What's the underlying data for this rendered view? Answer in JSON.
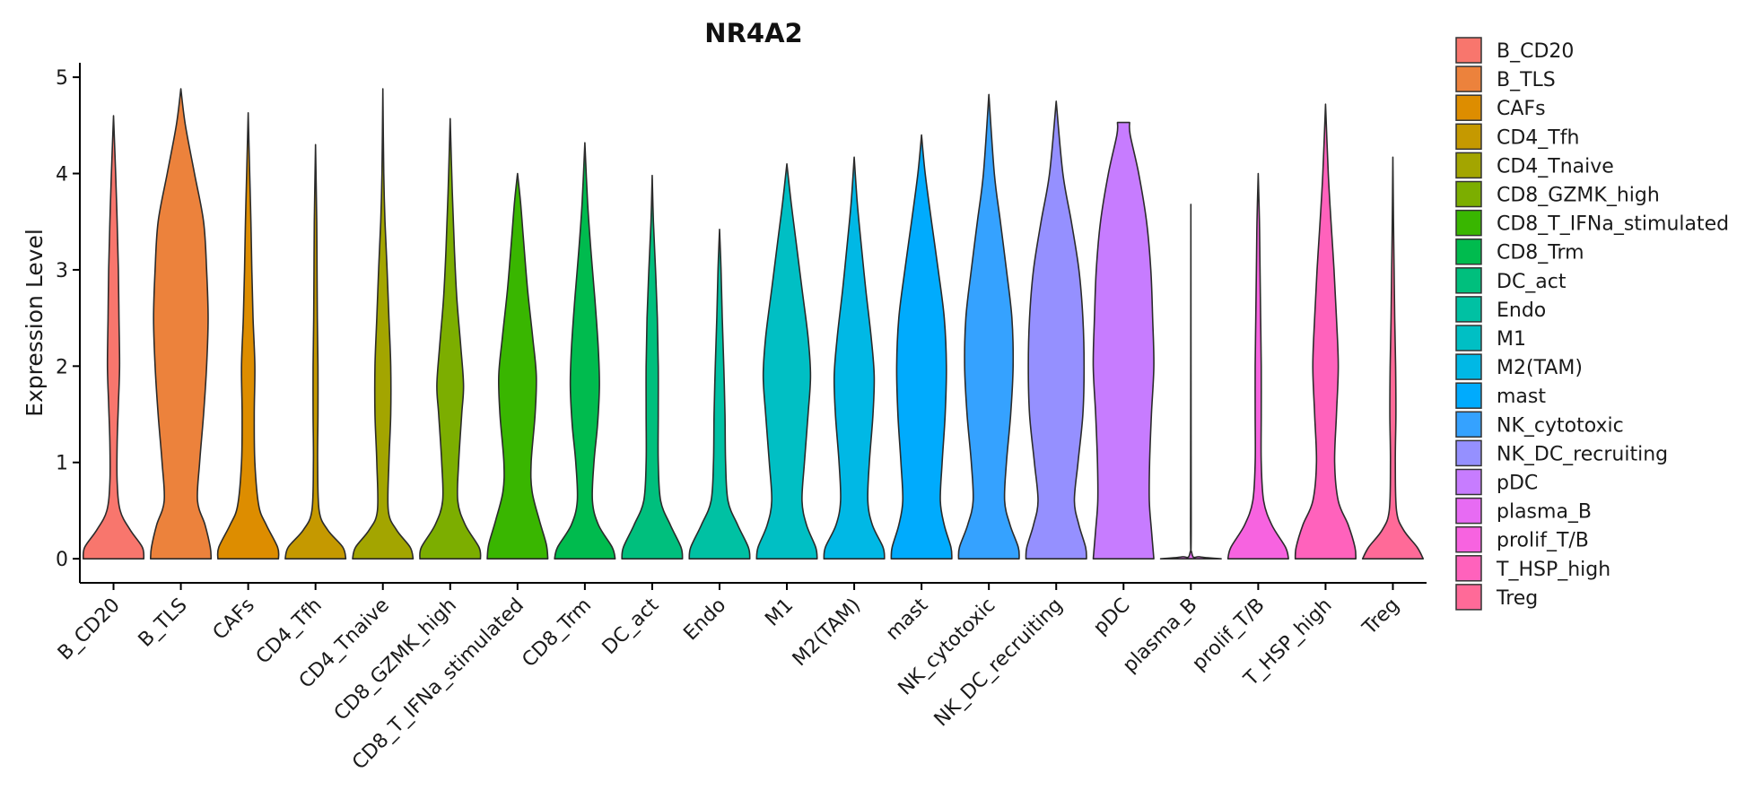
{
  "chart_data": {
    "type": "violin",
    "title": "NR4A2",
    "xlabel": "",
    "ylabel": "Expression Level",
    "ylim": [
      -0.25,
      5.15
    ],
    "yticks": [
      0,
      1,
      2,
      3,
      4,
      5
    ],
    "legend_position": "right",
    "categories": [
      "B_CD20",
      "B_TLS",
      "CAFs",
      "CD4_Tfh",
      "CD4_Tnaive",
      "CD8_GZMK_high",
      "CD8_T_IFNa_stimulated",
      "CD8_Trm",
      "DC_act",
      "Endo",
      "M1",
      "M2(TAM)",
      "mast",
      "NK_cytotoxic",
      "NK_DC_recruiting",
      "pDC",
      "plasma_B",
      "prolif_T/B",
      "T_HSP_high",
      "Treg"
    ],
    "colors": [
      "#F8766D",
      "#EC823C",
      "#DD8D00",
      "#C59900",
      "#A3A500",
      "#7CAE00",
      "#39B600",
      "#00BB4E",
      "#00BF7D",
      "#00C1A3",
      "#00BFC4",
      "#00B8E5",
      "#00ABFD",
      "#35A2FF",
      "#9590FF",
      "#C77CFF",
      "#E76BF3",
      "#F763E0",
      "#FF62BC",
      "#FF6A98"
    ],
    "series": [
      {
        "name": "B_CD20",
        "max": 4.6,
        "profile": [
          [
            0,
            1.0
          ],
          [
            0.12,
            0.95
          ],
          [
            0.3,
            0.55
          ],
          [
            0.5,
            0.22
          ],
          [
            0.8,
            0.12
          ],
          [
            1.2,
            0.12
          ],
          [
            1.6,
            0.16
          ],
          [
            2.0,
            0.2
          ],
          [
            2.5,
            0.18
          ],
          [
            3.0,
            0.16
          ],
          [
            3.5,
            0.12
          ],
          [
            4.0,
            0.07
          ],
          [
            4.6,
            0.0
          ]
        ]
      },
      {
        "name": "B_TLS",
        "max": 4.88,
        "profile": [
          [
            0,
            1.0
          ],
          [
            0.12,
            0.97
          ],
          [
            0.35,
            0.8
          ],
          [
            0.6,
            0.55
          ],
          [
            1.0,
            0.62
          ],
          [
            1.5,
            0.75
          ],
          [
            2.0,
            0.85
          ],
          [
            2.5,
            0.9
          ],
          [
            3.0,
            0.85
          ],
          [
            3.5,
            0.75
          ],
          [
            4.0,
            0.45
          ],
          [
            4.5,
            0.15
          ],
          [
            4.88,
            0.0
          ]
        ]
      },
      {
        "name": "CAFs",
        "max": 4.63,
        "profile": [
          [
            0,
            1.0
          ],
          [
            0.12,
            0.97
          ],
          [
            0.35,
            0.6
          ],
          [
            0.55,
            0.35
          ],
          [
            1.0,
            0.22
          ],
          [
            1.5,
            0.2
          ],
          [
            2.0,
            0.22
          ],
          [
            2.5,
            0.16
          ],
          [
            3.0,
            0.12
          ],
          [
            3.5,
            0.09
          ],
          [
            4.0,
            0.05
          ],
          [
            4.63,
            0.0
          ]
        ]
      },
      {
        "name": "CD4_Tfh",
        "max": 4.3,
        "profile": [
          [
            0,
            1.0
          ],
          [
            0.12,
            0.9
          ],
          [
            0.3,
            0.4
          ],
          [
            0.5,
            0.12
          ],
          [
            1.0,
            0.07
          ],
          [
            1.5,
            0.08
          ],
          [
            2.0,
            0.08
          ],
          [
            2.5,
            0.06
          ],
          [
            3.0,
            0.05
          ],
          [
            3.5,
            0.04
          ],
          [
            4.3,
            0.0
          ]
        ]
      },
      {
        "name": "CD4_Tnaive",
        "max": 4.88,
        "profile": [
          [
            0,
            1.0
          ],
          [
            0.12,
            0.9
          ],
          [
            0.3,
            0.45
          ],
          [
            0.5,
            0.18
          ],
          [
            1.0,
            0.2
          ],
          [
            1.5,
            0.26
          ],
          [
            2.0,
            0.26
          ],
          [
            2.5,
            0.2
          ],
          [
            3.0,
            0.14
          ],
          [
            3.5,
            0.07
          ],
          [
            4.0,
            0.03
          ],
          [
            4.88,
            0.0
          ]
        ]
      },
      {
        "name": "CD8_GZMK_high",
        "max": 4.57,
        "profile": [
          [
            0,
            1.0
          ],
          [
            0.12,
            0.95
          ],
          [
            0.35,
            0.5
          ],
          [
            0.6,
            0.25
          ],
          [
            1.0,
            0.28
          ],
          [
            1.5,
            0.38
          ],
          [
            1.8,
            0.44
          ],
          [
            2.2,
            0.35
          ],
          [
            2.7,
            0.22
          ],
          [
            3.2,
            0.14
          ],
          [
            3.8,
            0.07
          ],
          [
            4.57,
            0.0
          ]
        ]
      },
      {
        "name": "CD8_T_IFNa_stimulated",
        "max": 4.0,
        "profile": [
          [
            0,
            1.0
          ],
          [
            0.15,
            0.95
          ],
          [
            0.4,
            0.72
          ],
          [
            0.7,
            0.48
          ],
          [
            1.0,
            0.45
          ],
          [
            1.5,
            0.58
          ],
          [
            1.9,
            0.62
          ],
          [
            2.3,
            0.5
          ],
          [
            2.8,
            0.33
          ],
          [
            3.3,
            0.2
          ],
          [
            3.7,
            0.1
          ],
          [
            4.0,
            0.0
          ]
        ]
      },
      {
        "name": "CD8_Trm",
        "max": 4.32,
        "profile": [
          [
            0,
            1.0
          ],
          [
            0.12,
            0.9
          ],
          [
            0.35,
            0.45
          ],
          [
            0.6,
            0.25
          ],
          [
            1.0,
            0.3
          ],
          [
            1.4,
            0.42
          ],
          [
            1.8,
            0.48
          ],
          [
            2.2,
            0.44
          ],
          [
            2.7,
            0.33
          ],
          [
            3.2,
            0.2
          ],
          [
            3.7,
            0.09
          ],
          [
            4.32,
            0.0
          ]
        ]
      },
      {
        "name": "DC_act",
        "max": 3.98,
        "profile": [
          [
            0,
            1.0
          ],
          [
            0.12,
            0.95
          ],
          [
            0.35,
            0.6
          ],
          [
            0.6,
            0.28
          ],
          [
            1.0,
            0.2
          ],
          [
            1.5,
            0.2
          ],
          [
            2.0,
            0.2
          ],
          [
            2.5,
            0.17
          ],
          [
            3.0,
            0.11
          ],
          [
            3.5,
            0.04
          ],
          [
            3.98,
            0.0
          ]
        ]
      },
      {
        "name": "Endo",
        "max": 3.42,
        "profile": [
          [
            0,
            1.0
          ],
          [
            0.12,
            0.95
          ],
          [
            0.35,
            0.6
          ],
          [
            0.6,
            0.28
          ],
          [
            1.0,
            0.2
          ],
          [
            1.5,
            0.18
          ],
          [
            2.0,
            0.14
          ],
          [
            2.5,
            0.09
          ],
          [
            3.0,
            0.05
          ],
          [
            3.42,
            0.0
          ]
        ]
      },
      {
        "name": "M1",
        "max": 4.1,
        "profile": [
          [
            0,
            1.0
          ],
          [
            0.12,
            0.95
          ],
          [
            0.35,
            0.65
          ],
          [
            0.6,
            0.5
          ],
          [
            1.0,
            0.58
          ],
          [
            1.5,
            0.7
          ],
          [
            1.9,
            0.78
          ],
          [
            2.3,
            0.7
          ],
          [
            2.8,
            0.5
          ],
          [
            3.3,
            0.3
          ],
          [
            3.7,
            0.14
          ],
          [
            4.1,
            0.0
          ]
        ]
      },
      {
        "name": "M2(TAM)",
        "max": 4.17,
        "profile": [
          [
            0,
            1.0
          ],
          [
            0.12,
            0.95
          ],
          [
            0.35,
            0.6
          ],
          [
            0.6,
            0.45
          ],
          [
            1.0,
            0.5
          ],
          [
            1.5,
            0.62
          ],
          [
            1.9,
            0.66
          ],
          [
            2.3,
            0.56
          ],
          [
            2.8,
            0.38
          ],
          [
            3.3,
            0.22
          ],
          [
            3.7,
            0.1
          ],
          [
            4.17,
            0.0
          ]
        ]
      },
      {
        "name": "mast",
        "max": 4.4,
        "profile": [
          [
            0,
            1.0
          ],
          [
            0.12,
            0.97
          ],
          [
            0.35,
            0.75
          ],
          [
            0.6,
            0.62
          ],
          [
            1.0,
            0.68
          ],
          [
            1.5,
            0.78
          ],
          [
            2.0,
            0.82
          ],
          [
            2.5,
            0.75
          ],
          [
            3.0,
            0.55
          ],
          [
            3.5,
            0.33
          ],
          [
            4.0,
            0.12
          ],
          [
            4.4,
            0.0
          ]
        ]
      },
      {
        "name": "NK_cytotoxic",
        "max": 4.82,
        "profile": [
          [
            0,
            1.0
          ],
          [
            0.12,
            0.97
          ],
          [
            0.35,
            0.7
          ],
          [
            0.6,
            0.52
          ],
          [
            1.0,
            0.58
          ],
          [
            1.5,
            0.72
          ],
          [
            2.0,
            0.8
          ],
          [
            2.5,
            0.76
          ],
          [
            3.0,
            0.58
          ],
          [
            3.5,
            0.38
          ],
          [
            4.0,
            0.18
          ],
          [
            4.82,
            0.0
          ]
        ]
      },
      {
        "name": "NK_DC_recruiting",
        "max": 4.75,
        "profile": [
          [
            0,
            1.0
          ],
          [
            0.12,
            0.97
          ],
          [
            0.35,
            0.75
          ],
          [
            0.6,
            0.6
          ],
          [
            1.0,
            0.72
          ],
          [
            1.5,
            0.88
          ],
          [
            2.0,
            0.92
          ],
          [
            2.5,
            0.88
          ],
          [
            3.0,
            0.75
          ],
          [
            3.5,
            0.5
          ],
          [
            4.0,
            0.22
          ],
          [
            4.75,
            0.0
          ]
        ]
      },
      {
        "name": "pDC",
        "max": 4.53,
        "profile": [
          [
            0,
            1.0
          ],
          [
            0.3,
            0.92
          ],
          [
            0.6,
            0.85
          ],
          [
            1.0,
            0.86
          ],
          [
            1.5,
            0.92
          ],
          [
            2.0,
            1.0
          ],
          [
            2.5,
            0.96
          ],
          [
            3.0,
            0.9
          ],
          [
            3.5,
            0.76
          ],
          [
            4.0,
            0.5
          ],
          [
            4.4,
            0.22
          ],
          [
            4.53,
            0.2
          ]
        ]
      },
      {
        "name": "plasma_B",
        "max": 3.68,
        "profile": [
          [
            0,
            1.0
          ],
          [
            0.02,
            0.3
          ],
          [
            0.06,
            0.03
          ],
          [
            0.5,
            0.01
          ],
          [
            3.68,
            0.0
          ]
        ]
      },
      {
        "name": "prolif_T/B",
        "max": 4.0,
        "profile": [
          [
            0,
            1.0
          ],
          [
            0.12,
            0.9
          ],
          [
            0.35,
            0.45
          ],
          [
            0.6,
            0.18
          ],
          [
            1.0,
            0.1
          ],
          [
            1.5,
            0.1
          ],
          [
            2.0,
            0.1
          ],
          [
            2.5,
            0.08
          ],
          [
            3.0,
            0.06
          ],
          [
            3.5,
            0.04
          ],
          [
            4.0,
            0.0
          ]
        ]
      },
      {
        "name": "T_HSP_high",
        "max": 4.72,
        "profile": [
          [
            0,
            1.0
          ],
          [
            0.12,
            0.97
          ],
          [
            0.35,
            0.75
          ],
          [
            0.6,
            0.42
          ],
          [
            1.0,
            0.3
          ],
          [
            1.5,
            0.36
          ],
          [
            2.0,
            0.42
          ],
          [
            2.5,
            0.36
          ],
          [
            3.0,
            0.28
          ],
          [
            3.5,
            0.18
          ],
          [
            4.0,
            0.09
          ],
          [
            4.72,
            0.0
          ]
        ]
      },
      {
        "name": "Treg",
        "max": 4.17,
        "profile": [
          [
            0,
            1.0
          ],
          [
            0.12,
            0.8
          ],
          [
            0.3,
            0.35
          ],
          [
            0.5,
            0.12
          ],
          [
            1.0,
            0.08
          ],
          [
            1.5,
            0.1
          ],
          [
            2.0,
            0.09
          ],
          [
            2.5,
            0.06
          ],
          [
            3.0,
            0.04
          ],
          [
            3.5,
            0.02
          ],
          [
            4.17,
            0.0
          ]
        ]
      }
    ]
  }
}
